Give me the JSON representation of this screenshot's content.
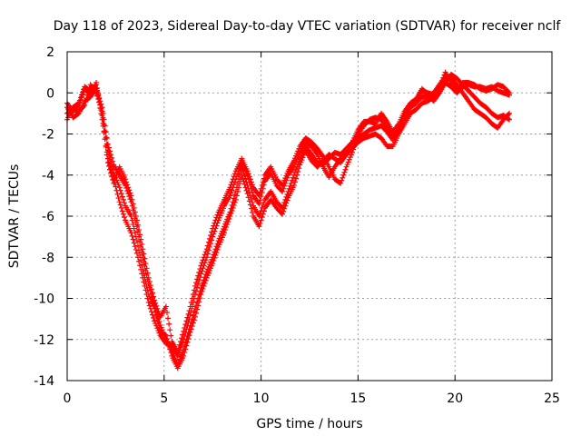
{
  "chart_data": {
    "type": "scatter",
    "title": "Day 118 of 2023, Sidereal Day-to-day VTEC variation (SDTVAR) for receiver nclf",
    "xlabel": "GPS time / hours",
    "ylabel": "SDTVAR / TECUs",
    "xlim": [
      0,
      25
    ],
    "ylim": [
      -14,
      2
    ],
    "xticks": [
      0,
      5,
      10,
      15,
      20,
      25
    ],
    "yticks": [
      2,
      0,
      -2,
      -4,
      -6,
      -8,
      -10,
      -12,
      -14
    ],
    "grid": true,
    "marker": "plus",
    "color": "#ff0000",
    "series": [
      {
        "name": "track-1",
        "points": [
          [
            0.0,
            -0.7
          ],
          [
            0.3,
            -1.2
          ],
          [
            0.6,
            -1.0
          ],
          [
            0.9,
            -0.4
          ],
          [
            1.2,
            -0.2
          ],
          [
            1.5,
            0.2
          ],
          [
            1.8,
            -0.7
          ],
          [
            2.1,
            -2.5
          ],
          [
            2.4,
            -3.5
          ],
          [
            2.7,
            -4.0
          ],
          [
            3.0,
            -4.5
          ],
          [
            3.3,
            -5.3
          ],
          [
            3.6,
            -6.5
          ],
          [
            3.9,
            -8.0
          ],
          [
            4.2,
            -9.3
          ],
          [
            4.5,
            -10.3
          ],
          [
            4.8,
            -11.3
          ],
          [
            5.1,
            -12.0
          ],
          [
            5.4,
            -12.6
          ],
          [
            5.7,
            -13.2
          ],
          [
            6.0,
            -12.5
          ],
          [
            6.3,
            -11.5
          ],
          [
            6.6,
            -10.5
          ],
          [
            6.9,
            -9.5
          ],
          [
            7.2,
            -8.7
          ],
          [
            7.5,
            -8.0
          ],
          [
            7.8,
            -7.2
          ],
          [
            8.1,
            -6.5
          ],
          [
            8.4,
            -5.8
          ],
          [
            8.7,
            -4.8
          ],
          [
            9.0,
            -3.6
          ],
          [
            9.3,
            -4.5
          ],
          [
            9.6,
            -5.5
          ],
          [
            9.9,
            -6.0
          ],
          [
            10.2,
            -5.2
          ],
          [
            10.5,
            -4.8
          ],
          [
            10.8,
            -5.3
          ],
          [
            11.1,
            -5.6
          ],
          [
            11.4,
            -4.8
          ],
          [
            11.7,
            -4.0
          ],
          [
            12.0,
            -3.2
          ],
          [
            12.3,
            -2.6
          ],
          [
            12.6,
            -3.0
          ],
          [
            12.9,
            -3.4
          ],
          [
            13.2,
            -3.5
          ],
          [
            13.5,
            -3.2
          ],
          [
            13.8,
            -2.9
          ],
          [
            14.1,
            -3.0
          ],
          [
            14.4,
            -2.7
          ],
          [
            14.7,
            -2.4
          ],
          [
            15.0,
            -2.2
          ],
          [
            15.3,
            -2.0
          ],
          [
            15.6,
            -1.8
          ],
          [
            15.9,
            -1.7
          ],
          [
            16.2,
            -1.6
          ],
          [
            16.5,
            -1.9
          ],
          [
            16.8,
            -2.3
          ],
          [
            17.1,
            -1.8
          ],
          [
            17.4,
            -1.2
          ],
          [
            17.7,
            -0.7
          ],
          [
            18.0,
            -0.5
          ],
          [
            18.3,
            -0.2
          ],
          [
            18.6,
            -0.2
          ],
          [
            18.9,
            0.0
          ],
          [
            19.2,
            0.4
          ],
          [
            19.5,
            0.8
          ],
          [
            19.8,
            0.7
          ],
          [
            20.1,
            0.4
          ],
          [
            20.4,
            0.0
          ],
          [
            20.7,
            -0.4
          ],
          [
            21.0,
            -0.8
          ],
          [
            21.3,
            -1.0
          ],
          [
            21.6,
            -1.2
          ],
          [
            21.9,
            -1.5
          ],
          [
            22.2,
            -1.7
          ],
          [
            22.5,
            -1.3
          ],
          [
            22.8,
            -1.0
          ]
        ]
      },
      {
        "name": "track-2",
        "points": [
          [
            0.0,
            -1.3
          ],
          [
            0.3,
            -0.7
          ],
          [
            0.6,
            -0.5
          ],
          [
            0.9,
            0.3
          ],
          [
            1.2,
            0.1
          ],
          [
            1.5,
            0.4
          ],
          [
            1.8,
            -1.3
          ],
          [
            2.1,
            -3.2
          ],
          [
            2.4,
            -4.2
          ],
          [
            2.7,
            -5.3
          ],
          [
            3.0,
            -6.2
          ],
          [
            3.3,
            -6.8
          ],
          [
            3.6,
            -7.8
          ],
          [
            3.9,
            -9.0
          ],
          [
            4.2,
            -10.2
          ],
          [
            4.5,
            -11.1
          ],
          [
            4.8,
            -11.8
          ],
          [
            5.1,
            -12.2
          ],
          [
            5.4,
            -12.3
          ],
          [
            5.7,
            -12.8
          ],
          [
            6.0,
            -12.0
          ],
          [
            6.3,
            -11.0
          ],
          [
            6.6,
            -9.8
          ],
          [
            6.9,
            -8.8
          ],
          [
            7.2,
            -8.0
          ],
          [
            7.5,
            -7.0
          ],
          [
            7.8,
            -6.2
          ],
          [
            8.1,
            -5.5
          ],
          [
            8.4,
            -5.0
          ],
          [
            8.7,
            -4.2
          ],
          [
            9.0,
            -3.4
          ],
          [
            9.3,
            -4.0
          ],
          [
            9.6,
            -5.0
          ],
          [
            9.9,
            -5.4
          ],
          [
            10.2,
            -4.3
          ],
          [
            10.5,
            -3.9
          ],
          [
            10.8,
            -4.5
          ],
          [
            11.1,
            -4.8
          ],
          [
            11.4,
            -4.0
          ],
          [
            11.7,
            -3.6
          ],
          [
            12.0,
            -2.9
          ],
          [
            12.3,
            -2.4
          ],
          [
            12.6,
            -2.6
          ],
          [
            12.9,
            -3.0
          ],
          [
            13.2,
            -3.6
          ],
          [
            13.5,
            -4.1
          ],
          [
            13.8,
            -3.6
          ],
          [
            14.1,
            -3.2
          ],
          [
            14.4,
            -2.8
          ],
          [
            14.7,
            -2.4
          ],
          [
            15.0,
            -1.8
          ],
          [
            15.3,
            -1.4
          ],
          [
            15.6,
            -1.4
          ],
          [
            15.9,
            -1.5
          ],
          [
            16.2,
            -1.0
          ],
          [
            16.5,
            -1.4
          ],
          [
            16.8,
            -1.9
          ],
          [
            17.1,
            -1.5
          ],
          [
            17.4,
            -0.9
          ],
          [
            17.7,
            -0.5
          ],
          [
            18.0,
            -0.3
          ],
          [
            18.3,
            0.2
          ],
          [
            18.6,
            -0.1
          ],
          [
            18.9,
            -0.4
          ],
          [
            19.2,
            0.0
          ],
          [
            19.5,
            0.5
          ],
          [
            19.8,
            0.3
          ],
          [
            20.1,
            0.0
          ],
          [
            20.4,
            0.3
          ],
          [
            20.7,
            0.4
          ],
          [
            21.0,
            0.3
          ],
          [
            21.3,
            0.3
          ],
          [
            21.6,
            0.2
          ],
          [
            21.9,
            0.3
          ],
          [
            22.2,
            0.1
          ],
          [
            22.5,
            0.0
          ],
          [
            22.8,
            -0.1
          ]
        ]
      },
      {
        "name": "track-3",
        "points": [
          [
            0.0,
            -1.0
          ],
          [
            0.3,
            -0.8
          ],
          [
            0.6,
            -0.9
          ],
          [
            0.9,
            -0.6
          ],
          [
            1.2,
            0.4
          ],
          [
            1.5,
            0.0
          ],
          [
            1.8,
            -0.9
          ],
          [
            2.1,
            -2.8
          ],
          [
            2.4,
            -3.9
          ],
          [
            2.7,
            -4.6
          ],
          [
            3.0,
            -5.5
          ],
          [
            3.3,
            -6.0
          ],
          [
            3.6,
            -7.2
          ],
          [
            3.9,
            -8.6
          ],
          [
            4.2,
            -9.8
          ],
          [
            4.5,
            -10.5
          ],
          [
            4.8,
            -11.6
          ],
          [
            5.1,
            -11.8
          ],
          [
            5.4,
            -12.8
          ],
          [
            5.7,
            -13.4
          ],
          [
            6.0,
            -12.8
          ],
          [
            6.3,
            -11.8
          ],
          [
            6.6,
            -10.9
          ],
          [
            6.9,
            -9.8
          ],
          [
            7.2,
            -9.0
          ],
          [
            7.5,
            -8.3
          ],
          [
            7.8,
            -7.5
          ],
          [
            8.1,
            -6.8
          ],
          [
            8.4,
            -6.0
          ],
          [
            8.7,
            -5.2
          ],
          [
            9.0,
            -4.0
          ],
          [
            9.3,
            -4.9
          ],
          [
            9.6,
            -6.0
          ],
          [
            9.9,
            -6.5
          ],
          [
            10.2,
            -5.6
          ],
          [
            10.5,
            -5.2
          ],
          [
            10.8,
            -5.6
          ],
          [
            11.1,
            -5.9
          ],
          [
            11.4,
            -5.1
          ],
          [
            11.7,
            -4.5
          ],
          [
            12.0,
            -3.5
          ],
          [
            12.3,
            -2.8
          ],
          [
            12.6,
            -3.3
          ],
          [
            12.9,
            -3.6
          ],
          [
            13.2,
            -3.3
          ],
          [
            13.5,
            -3.0
          ],
          [
            13.8,
            -3.2
          ],
          [
            14.1,
            -3.4
          ],
          [
            14.4,
            -3.0
          ],
          [
            14.7,
            -2.7
          ],
          [
            15.0,
            -2.4
          ],
          [
            15.3,
            -2.2
          ],
          [
            15.6,
            -2.1
          ],
          [
            15.9,
            -2.0
          ],
          [
            16.2,
            -2.2
          ],
          [
            16.5,
            -2.6
          ],
          [
            16.8,
            -2.6
          ],
          [
            17.1,
            -2.0
          ],
          [
            17.4,
            -1.5
          ],
          [
            17.7,
            -1.0
          ],
          [
            18.0,
            -0.8
          ],
          [
            18.3,
            -0.5
          ],
          [
            18.6,
            -0.4
          ],
          [
            18.9,
            -0.2
          ],
          [
            19.2,
            0.1
          ],
          [
            19.5,
            0.5
          ],
          [
            19.8,
            0.9
          ],
          [
            20.1,
            0.7
          ],
          [
            20.4,
            0.4
          ],
          [
            20.7,
            0.1
          ],
          [
            21.0,
            -0.2
          ],
          [
            21.3,
            -0.5
          ],
          [
            21.6,
            -0.7
          ],
          [
            21.9,
            -1.0
          ],
          [
            22.2,
            -1.2
          ],
          [
            22.5,
            -1.1
          ],
          [
            22.8,
            -1.3
          ]
        ]
      },
      {
        "name": "track-4",
        "points": [
          [
            0.0,
            -0.5
          ],
          [
            0.3,
            -0.9
          ],
          [
            0.6,
            -0.6
          ],
          [
            0.9,
            0.2
          ],
          [
            1.2,
            -0.1
          ],
          [
            1.5,
            0.5
          ],
          [
            1.8,
            -1.1
          ],
          [
            2.1,
            -3.4
          ],
          [
            2.4,
            -4.4
          ],
          [
            2.7,
            -3.6
          ],
          [
            3.0,
            -4.2
          ],
          [
            3.3,
            -5.0
          ],
          [
            3.6,
            -6.2
          ],
          [
            3.9,
            -7.6
          ],
          [
            4.2,
            -9.0
          ],
          [
            4.5,
            -10.1
          ],
          [
            4.8,
            -10.9
          ],
          [
            5.1,
            -10.4
          ],
          [
            5.4,
            -12.1
          ],
          [
            5.7,
            -12.6
          ],
          [
            6.0,
            -11.6
          ],
          [
            6.3,
            -10.6
          ],
          [
            6.6,
            -9.4
          ],
          [
            6.9,
            -8.4
          ],
          [
            7.2,
            -7.6
          ],
          [
            7.5,
            -6.6
          ],
          [
            7.8,
            -5.8
          ],
          [
            8.1,
            -5.2
          ],
          [
            8.4,
            -4.6
          ],
          [
            8.7,
            -3.8
          ],
          [
            9.0,
            -3.2
          ],
          [
            9.3,
            -3.8
          ],
          [
            9.6,
            -4.6
          ],
          [
            9.9,
            -5.0
          ],
          [
            10.2,
            -4.0
          ],
          [
            10.5,
            -3.6
          ],
          [
            10.8,
            -4.2
          ],
          [
            11.1,
            -4.5
          ],
          [
            11.4,
            -3.8
          ],
          [
            11.7,
            -3.3
          ],
          [
            12.0,
            -2.6
          ],
          [
            12.3,
            -2.2
          ],
          [
            12.6,
            -2.4
          ],
          [
            12.9,
            -2.7
          ],
          [
            13.2,
            -3.1
          ],
          [
            13.5,
            -3.6
          ],
          [
            13.8,
            -4.2
          ],
          [
            14.1,
            -4.4
          ],
          [
            14.4,
            -3.6
          ],
          [
            14.7,
            -2.9
          ],
          [
            15.0,
            -2.0
          ],
          [
            15.3,
            -1.6
          ],
          [
            15.6,
            -1.3
          ],
          [
            15.9,
            -1.2
          ],
          [
            16.2,
            -1.3
          ],
          [
            16.5,
            -1.7
          ],
          [
            16.8,
            -2.1
          ],
          [
            17.1,
            -1.7
          ],
          [
            17.4,
            -1.1
          ],
          [
            17.7,
            -0.6
          ],
          [
            18.0,
            -0.4
          ],
          [
            18.3,
            0.1
          ],
          [
            18.6,
            0.0
          ],
          [
            18.9,
            -0.1
          ],
          [
            19.2,
            0.2
          ],
          [
            19.5,
            1.0
          ],
          [
            19.8,
            0.5
          ],
          [
            20.1,
            0.1
          ],
          [
            20.4,
            0.5
          ],
          [
            20.7,
            0.5
          ],
          [
            21.0,
            0.4
          ],
          [
            21.3,
            0.2
          ],
          [
            21.6,
            0.1
          ],
          [
            21.9,
            0.2
          ],
          [
            22.2,
            0.4
          ],
          [
            22.5,
            0.3
          ],
          [
            22.8,
            0.0
          ]
        ]
      }
    ]
  }
}
